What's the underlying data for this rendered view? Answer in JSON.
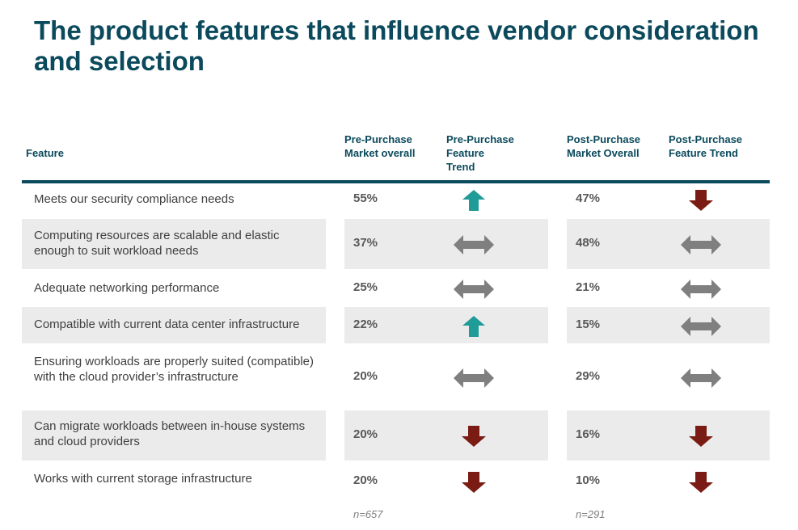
{
  "title": "The product features that influence vendor consideration and selection",
  "headers": {
    "feature": "Feature",
    "pre_overall": "Pre-Purchase Market overall",
    "pre_trend_line1": "Pre-Purchase",
    "pre_trend_line2": "Feature",
    "pre_trend_line3": "Trend",
    "post_overall_line1": "Post-Purchase",
    "post_overall_line2": "Market Overall",
    "post_trend_line1": "Post-Purchase",
    "post_trend_line2": "Feature Trend"
  },
  "colors": {
    "up": "#1f9c97",
    "down": "#7b1c14",
    "flat": "#7f7f7f",
    "accent": "#0b4a5c"
  },
  "rows": [
    {
      "feature": "Meets our security compliance needs",
      "pre": "55%",
      "pre_trend": "up",
      "post": "47%",
      "post_trend": "down"
    },
    {
      "feature": "Computing resources are scalable and elastic enough to suit workload needs",
      "pre": "37%",
      "pre_trend": "flat",
      "post": "48%",
      "post_trend": "flat"
    },
    {
      "feature": "Adequate networking performance",
      "pre": "25%",
      "pre_trend": "flat",
      "post": "21%",
      "post_trend": "flat"
    },
    {
      "feature": "Compatible with current data center infrastructure",
      "pre": "22%",
      "pre_trend": "up",
      "post": "15%",
      "post_trend": "flat"
    },
    {
      "feature": "Ensuring workloads are properly suited (compatible) with the cloud provider’s infrastructure",
      "pre": "20%",
      "pre_trend": "flat",
      "post": "29%",
      "post_trend": "flat"
    },
    {
      "feature": "Can migrate workloads between in-house systems and cloud providers",
      "pre": "20%",
      "pre_trend": "down",
      "post": "16%",
      "post_trend": "down"
    },
    {
      "feature": "Works with current storage infrastructure",
      "pre": "20%",
      "pre_trend": "down",
      "post": "10%",
      "post_trend": "down"
    }
  ],
  "notes": {
    "pre_n": "n=657",
    "post_n": "n=291"
  }
}
